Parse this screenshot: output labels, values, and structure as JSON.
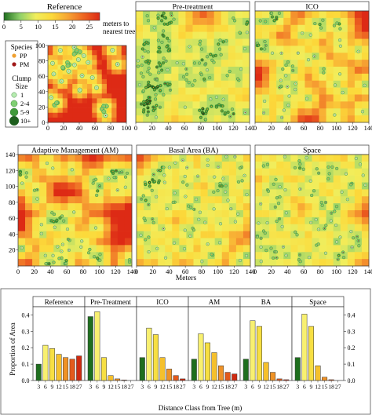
{
  "colors": {
    "dist_ramp": [
      "#1f6e1f",
      "#8fd06a",
      "#f1ee5c",
      "#fcd93a",
      "#f7a533",
      "#ee6522",
      "#dd2a15"
    ],
    "tree_light": "#a8e8a0",
    "tree_dark": "#1d6b1d",
    "tree_outline": "#2f7d2f",
    "pp_dot": "#f0a030",
    "pm_dot": "#a01818",
    "clump_1": "#b6ecb0",
    "clump_2_4": "#7fcf73",
    "clump_5_9": "#3f9a3a",
    "clump_10p": "#1d5e1d",
    "bar_cls1": "#1e6e1e",
    "bar_cls2": "#f8f070",
    "bar_cls3": "#f7df42",
    "bar_cls4": "#f5c02c",
    "bar_cls5": "#ef9226",
    "bar_cls6": "#e35a1c",
    "bar_cls7": "#cf2a10"
  },
  "icons": {
    "species": "dot-marker-icon",
    "clump": "circle-size-icon"
  },
  "colorbar": {
    "title": "Reference",
    "ticks": [
      "0",
      "5",
      "10",
      "15",
      "20",
      "25"
    ],
    "unit_label_line1": "meters to",
    "unit_label_line2": "nearest tree",
    "range": [
      0,
      28
    ]
  },
  "legend": {
    "species_title": "Species",
    "species": [
      {
        "code": "PP",
        "color_key": "pp_dot"
      },
      {
        "code": "PM",
        "color_key": "pm_dot"
      }
    ],
    "clump_title_line1": "Clump",
    "clump_title_line2": "Size",
    "clumps": [
      {
        "label": "1",
        "color_key": "clump_1",
        "size": 1
      },
      {
        "label": "2-4",
        "color_key": "clump_2_4",
        "size": 2
      },
      {
        "label": "5-9",
        "color_key": "clump_5_9",
        "size": 3
      },
      {
        "label": "10+",
        "color_key": "clump_10p",
        "size": 4
      }
    ]
  },
  "maps": {
    "xlabel": "Meters",
    "panels": [
      {
        "title": "Reference",
        "xticks": [
          "0",
          "20",
          "40",
          "60",
          "80",
          "100"
        ],
        "yticks": [
          "0",
          "20",
          "40",
          "60",
          "80",
          "100"
        ],
        "extent": 100,
        "show_y": true,
        "n_trees": 34,
        "clumpiness": 0.55,
        "heat": 0.85,
        "seed": 11
      },
      {
        "title": "Pre-treatment",
        "xticks": [
          "0",
          "20",
          "40",
          "60",
          "80",
          "100",
          "120",
          "140"
        ],
        "yticks": [],
        "extent": 140,
        "show_y": false,
        "n_trees": 190,
        "clumpiness": 0.9,
        "heat": 0.15,
        "seed": 23
      },
      {
        "title": "ICO",
        "xticks": [
          "0",
          "20",
          "40",
          "60",
          "80",
          "100",
          "120",
          "140"
        ],
        "yticks": [],
        "extent": 140,
        "show_y": false,
        "n_trees": 62,
        "clumpiness": 0.5,
        "heat": 0.55,
        "seed": 37
      },
      {
        "title": "Adaptive Management (AM)",
        "xticks": [
          "0",
          "20",
          "40",
          "60",
          "80",
          "100",
          "120",
          "140"
        ],
        "yticks": [
          "20",
          "40",
          "60",
          "80",
          "100",
          "120",
          "140"
        ],
        "extent": 140,
        "show_y": true,
        "n_trees": 78,
        "clumpiness": 0.6,
        "heat": 0.7,
        "seed": 41
      },
      {
        "title": "Basal Area (BA)",
        "xticks": [
          "0",
          "20",
          "40",
          "60",
          "80",
          "100",
          "120",
          "140"
        ],
        "yticks": [],
        "extent": 140,
        "show_y": false,
        "n_trees": 92,
        "clumpiness": 0.3,
        "heat": 0.45,
        "seed": 53
      },
      {
        "title": "Space",
        "xticks": [
          "0",
          "20",
          "40",
          "60",
          "80",
          "100",
          "120",
          "140"
        ],
        "yticks": [],
        "extent": 140,
        "show_y": false,
        "n_trees": 95,
        "clumpiness": 0.1,
        "heat": 0.35,
        "seed": 67
      }
    ]
  },
  "chart_data": {
    "type": "bar",
    "title": "",
    "xlabel": "Distance Class from Tree (m)",
    "ylabel": "Proportion of Area",
    "ylim": [
      0,
      0.45
    ],
    "yticks": [
      "0.0",
      "0.1",
      "0.2",
      "0.3",
      "0.4"
    ],
    "ytick_values": [
      0,
      0.1,
      0.2,
      0.3,
      0.4
    ],
    "categories": [
      "3",
      "6",
      "9",
      "12",
      "15",
      "18",
      "27"
    ],
    "grid": false,
    "series": [
      {
        "name": "Reference",
        "values": [
          0.1,
          0.215,
          0.195,
          0.16,
          0.14,
          0.13,
          0.15
        ]
      },
      {
        "name": "Pre-Treatment",
        "values": [
          0.39,
          0.42,
          0.14,
          0.03,
          0.01,
          0.003,
          0.0
        ]
      },
      {
        "name": "ICO",
        "values": [
          0.14,
          0.32,
          0.28,
          0.14,
          0.07,
          0.03,
          0.01
        ]
      },
      {
        "name": "AM",
        "values": [
          0.13,
          0.285,
          0.23,
          0.17,
          0.09,
          0.05,
          0.04
        ]
      },
      {
        "name": "BA",
        "values": [
          0.13,
          0.365,
          0.33,
          0.11,
          0.05,
          0.01,
          0.005
        ]
      },
      {
        "name": "Space",
        "values": [
          0.14,
          0.405,
          0.33,
          0.09,
          0.02,
          0.005,
          0.0
        ]
      }
    ]
  }
}
